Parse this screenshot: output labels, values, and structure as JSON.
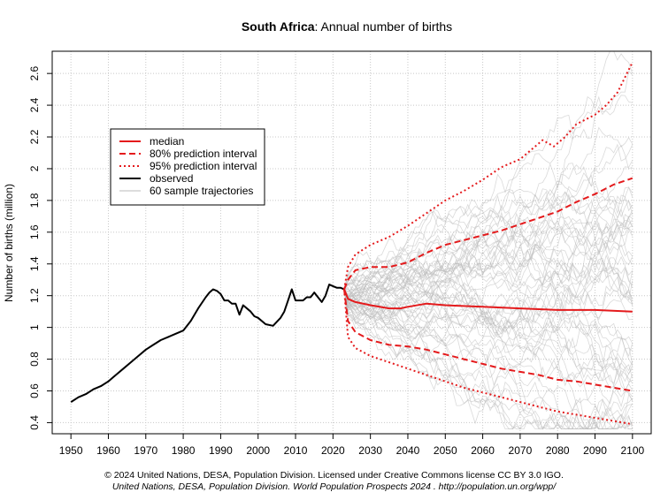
{
  "chart_data": {
    "type": "line",
    "title_bold": "South Africa",
    "title_rest": ": Annual number of births",
    "xlabel": "",
    "ylabel": "Number of births (million)",
    "xlim": [
      1945,
      2105
    ],
    "ylim": [
      0.33,
      2.74
    ],
    "x_ticks": [
      1950,
      1960,
      1970,
      1980,
      1990,
      2000,
      2010,
      2020,
      2030,
      2040,
      2050,
      2060,
      2070,
      2080,
      2090,
      2100
    ],
    "y_ticks": [
      0.4,
      0.6,
      0.8,
      1,
      1.2,
      1.4,
      1.6,
      1.8,
      2,
      2.2,
      2.4,
      2.6
    ],
    "y_tick_labels": [
      "0.4",
      "0.6",
      "0.8",
      "1",
      "1.2",
      "1.4",
      "1.6",
      "1.8",
      "2",
      "2.2",
      "2.4",
      "2.6"
    ],
    "grid": true,
    "legend": {
      "position": "top-left",
      "entries": [
        {
          "label": "median",
          "color": "#e41a1c",
          "style": "solid"
        },
        {
          "label": "80% prediction interval",
          "color": "#e41a1c",
          "style": "dashed"
        },
        {
          "label": "95% prediction interval",
          "color": "#e41a1c",
          "style": "dotted"
        },
        {
          "label": "observed",
          "color": "#000000",
          "style": "solid"
        },
        {
          "label": "60 sample trajectories",
          "color": "#bbbbbb",
          "style": "solid"
        }
      ]
    },
    "series": [
      {
        "name": "observed",
        "color": "#000000",
        "x": [
          1950,
          1952,
          1954,
          1956,
          1958,
          1960,
          1962,
          1964,
          1966,
          1968,
          1970,
          1972,
          1974,
          1976,
          1978,
          1980,
          1982,
          1984,
          1986,
          1987,
          1988,
          1989,
          1990,
          1991,
          1992,
          1993,
          1994,
          1995,
          1996,
          1998,
          1999,
          2000,
          2002,
          2004,
          2006,
          2007,
          2008,
          2009,
          2010,
          2012,
          2013,
          2014,
          2015,
          2016,
          2017,
          2018,
          2019,
          2020,
          2021,
          2022,
          2023
        ],
        "y": [
          0.53,
          0.56,
          0.58,
          0.61,
          0.63,
          0.66,
          0.7,
          0.74,
          0.78,
          0.82,
          0.86,
          0.89,
          0.92,
          0.94,
          0.96,
          0.98,
          1.04,
          1.12,
          1.19,
          1.22,
          1.24,
          1.23,
          1.21,
          1.17,
          1.17,
          1.15,
          1.15,
          1.08,
          1.14,
          1.1,
          1.07,
          1.06,
          1.02,
          1.01,
          1.06,
          1.1,
          1.17,
          1.24,
          1.17,
          1.17,
          1.19,
          1.19,
          1.22,
          1.19,
          1.16,
          1.2,
          1.27,
          1.26,
          1.25,
          1.25,
          1.24
        ]
      },
      {
        "name": "median",
        "color": "#e41a1c",
        "x": [
          2023,
          2024,
          2026,
          2030,
          2035,
          2038,
          2040,
          2045,
          2050,
          2060,
          2070,
          2080,
          2090,
          2100
        ],
        "y": [
          1.24,
          1.18,
          1.16,
          1.14,
          1.12,
          1.12,
          1.13,
          1.15,
          1.14,
          1.13,
          1.12,
          1.11,
          1.11,
          1.1
        ]
      },
      {
        "name": "80% upper",
        "color": "#e41a1c",
        "x": [
          2023,
          2024,
          2026,
          2030,
          2035,
          2040,
          2045,
          2050,
          2055,
          2060,
          2065,
          2070,
          2075,
          2080,
          2085,
          2090,
          2095,
          2100
        ],
        "y": [
          1.24,
          1.3,
          1.36,
          1.38,
          1.38,
          1.41,
          1.47,
          1.52,
          1.55,
          1.58,
          1.61,
          1.65,
          1.69,
          1.73,
          1.79,
          1.84,
          1.9,
          1.94
        ]
      },
      {
        "name": "80% lower",
        "color": "#e41a1c",
        "x": [
          2023,
          2024,
          2026,
          2030,
          2035,
          2040,
          2045,
          2050,
          2055,
          2060,
          2065,
          2070,
          2075,
          2080,
          2085,
          2090,
          2095,
          2100
        ],
        "y": [
          1.24,
          1.04,
          0.97,
          0.92,
          0.89,
          0.88,
          0.86,
          0.83,
          0.8,
          0.77,
          0.74,
          0.72,
          0.7,
          0.67,
          0.66,
          0.64,
          0.62,
          0.6
        ]
      },
      {
        "name": "95% upper",
        "color": "#e41a1c",
        "x": [
          2023,
          2024,
          2026,
          2030,
          2035,
          2040,
          2045,
          2050,
          2055,
          2060,
          2065,
          2070,
          2073,
          2076,
          2079,
          2082,
          2085,
          2090,
          2093,
          2096,
          2100
        ],
        "y": [
          1.24,
          1.38,
          1.46,
          1.52,
          1.57,
          1.64,
          1.72,
          1.8,
          1.86,
          1.93,
          2.01,
          2.06,
          2.12,
          2.18,
          2.14,
          2.2,
          2.28,
          2.34,
          2.4,
          2.48,
          2.67
        ]
      },
      {
        "name": "95% lower",
        "color": "#e41a1c",
        "x": [
          2023,
          2024,
          2026,
          2030,
          2035,
          2040,
          2045,
          2050,
          2055,
          2060,
          2065,
          2070,
          2075,
          2080,
          2085,
          2090,
          2095,
          2100
        ],
        "y": [
          1.24,
          0.94,
          0.87,
          0.82,
          0.78,
          0.74,
          0.7,
          0.66,
          0.62,
          0.59,
          0.56,
          0.53,
          0.5,
          0.47,
          0.45,
          0.43,
          0.41,
          0.39
        ]
      }
    ],
    "trajectories": {
      "name": "60 sample trajectories",
      "count": 60,
      "color": "#bbbbbb",
      "start_year": 2023,
      "end_year": 2100,
      "start_value": 1.24
    }
  },
  "footer": {
    "line1": "© 2024 United Nations, DESA, Population Division. Licensed under Creative Commons license CC BY 3.0 IGO.",
    "line2": "United Nations, DESA, Population Division. World Population Prospects 2024 . http://population.un.org/wpp/"
  }
}
